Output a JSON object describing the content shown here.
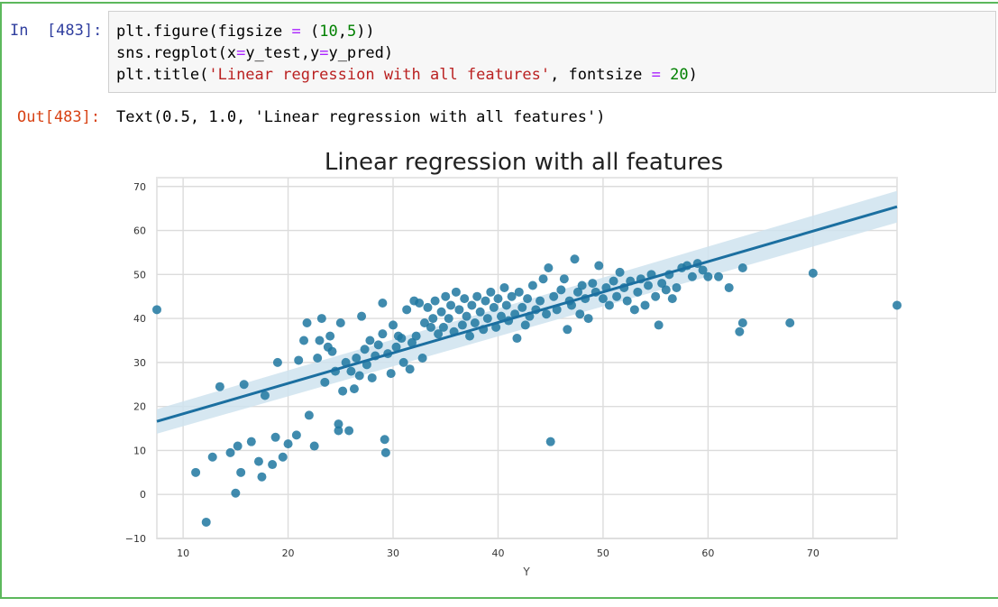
{
  "input_cell": {
    "prompt": "In  [483]:",
    "code_lines": [
      [
        {
          "t": "plt.figure(figsize "
        },
        {
          "t": "=",
          "c": "op"
        },
        {
          "t": " ("
        },
        {
          "t": "10",
          "c": "num"
        },
        {
          "t": ","
        },
        {
          "t": "5",
          "c": "num"
        },
        {
          "t": "))"
        }
      ],
      [
        {
          "t": "sns.regplot(x"
        },
        {
          "t": "=",
          "c": "op"
        },
        {
          "t": "y_test,y"
        },
        {
          "t": "=",
          "c": "op"
        },
        {
          "t": "y_pred)"
        }
      ],
      [
        {
          "t": "plt.title("
        },
        {
          "t": "'Linear regression with all features'",
          "c": "str"
        },
        {
          "t": ", fontsize "
        },
        {
          "t": "=",
          "c": "op"
        },
        {
          "t": " "
        },
        {
          "t": "20",
          "c": "num"
        },
        {
          "t": ")"
        }
      ]
    ]
  },
  "output_cell": {
    "prompt": "Out[483]:",
    "text": "Text(0.5, 1.0, 'Linear regression with all features')"
  },
  "colors": {
    "cell_border": "#5cb85c",
    "point": "#1f77a0",
    "line": "#1b6fa0",
    "ci_band": "#cfe3ee"
  },
  "chart_data": {
    "type": "scatter",
    "title": "Linear regression with all features",
    "xlabel": "Y",
    "ylabel": "",
    "xlim": [
      7.5,
      78
    ],
    "ylim": [
      -10,
      72
    ],
    "xticks": [
      10,
      20,
      30,
      40,
      50,
      60,
      70
    ],
    "yticks": [
      -10,
      0,
      10,
      20,
      30,
      40,
      50,
      60,
      70
    ],
    "grid": true,
    "regression": {
      "x": [
        7.5,
        78
      ],
      "y": [
        16.6,
        65.4
      ],
      "ci_lower": [
        13.8,
        61.8
      ],
      "ci_upper": [
        19.4,
        69.0
      ]
    },
    "points": [
      [
        7.5,
        42
      ],
      [
        11.2,
        5
      ],
      [
        12.2,
        -6.3
      ],
      [
        12.8,
        8.5
      ],
      [
        13.5,
        24.5
      ],
      [
        14.5,
        9.5
      ],
      [
        15,
        0.3
      ],
      [
        15.2,
        11
      ],
      [
        15.5,
        5
      ],
      [
        15.8,
        25
      ],
      [
        16.5,
        12
      ],
      [
        17.2,
        7.5
      ],
      [
        17.5,
        4
      ],
      [
        17.8,
        22.5
      ],
      [
        18.5,
        6.8
      ],
      [
        18.8,
        13
      ],
      [
        19,
        30
      ],
      [
        19.5,
        8.5
      ],
      [
        20,
        11.5
      ],
      [
        20.8,
        13.5
      ],
      [
        21,
        30.5
      ],
      [
        21.5,
        35
      ],
      [
        21.8,
        39
      ],
      [
        22,
        18
      ],
      [
        22.5,
        11
      ],
      [
        22.8,
        31
      ],
      [
        23,
        35
      ],
      [
        23.2,
        40
      ],
      [
        23.5,
        25.5
      ],
      [
        23.8,
        33.5
      ],
      [
        24,
        36
      ],
      [
        24.2,
        32.5
      ],
      [
        24.5,
        28
      ],
      [
        24.8,
        16
      ],
      [
        24.8,
        14.5
      ],
      [
        25,
        39
      ],
      [
        25.2,
        23.5
      ],
      [
        25.5,
        30
      ],
      [
        25.8,
        14.5
      ],
      [
        26,
        28
      ],
      [
        26.3,
        24
      ],
      [
        26.5,
        31
      ],
      [
        26.8,
        27
      ],
      [
        27,
        40.5
      ],
      [
        27.3,
        33
      ],
      [
        27.5,
        29.5
      ],
      [
        27.8,
        35
      ],
      [
        28,
        26.5
      ],
      [
        28.3,
        31.5
      ],
      [
        28.6,
        34
      ],
      [
        29,
        36.5
      ],
      [
        29,
        43.5
      ],
      [
        29.2,
        12.5
      ],
      [
        29.3,
        9.5
      ],
      [
        29.5,
        32
      ],
      [
        29.8,
        27.5
      ],
      [
        30,
        38.5
      ],
      [
        30.3,
        33.5
      ],
      [
        30.5,
        36
      ],
      [
        30.8,
        35.5
      ],
      [
        31,
        30
      ],
      [
        31.3,
        42
      ],
      [
        31.6,
        28.5
      ],
      [
        31.8,
        34.5
      ],
      [
        32,
        44
      ],
      [
        32.2,
        36
      ],
      [
        32.5,
        43.5
      ],
      [
        32.8,
        31
      ],
      [
        33,
        39
      ],
      [
        33.3,
        42.5
      ],
      [
        33.6,
        38
      ],
      [
        33.8,
        40
      ],
      [
        34,
        44
      ],
      [
        34.3,
        36.5
      ],
      [
        34.6,
        41.5
      ],
      [
        34.8,
        38
      ],
      [
        35,
        45
      ],
      [
        35.3,
        40
      ],
      [
        35.5,
        43
      ],
      [
        35.8,
        37
      ],
      [
        36,
        46
      ],
      [
        36.3,
        42
      ],
      [
        36.6,
        38.5
      ],
      [
        36.8,
        44.5
      ],
      [
        37,
        40.5
      ],
      [
        37.3,
        36
      ],
      [
        37.5,
        43
      ],
      [
        37.8,
        39
      ],
      [
        38,
        45
      ],
      [
        38.3,
        41.5
      ],
      [
        38.6,
        37.5
      ],
      [
        38.8,
        44
      ],
      [
        39,
        40
      ],
      [
        39.3,
        46
      ],
      [
        39.6,
        42.5
      ],
      [
        39.8,
        38
      ],
      [
        40,
        44.5
      ],
      [
        40.3,
        40.5
      ],
      [
        40.6,
        47
      ],
      [
        40.8,
        43
      ],
      [
        41,
        39.5
      ],
      [
        41.3,
        45
      ],
      [
        41.6,
        41
      ],
      [
        41.8,
        35.5
      ],
      [
        42,
        46
      ],
      [
        42.3,
        42.5
      ],
      [
        42.6,
        38.5
      ],
      [
        42.8,
        44.5
      ],
      [
        43,
        40.5
      ],
      [
        43.3,
        47.5
      ],
      [
        43.6,
        42
      ],
      [
        44,
        44
      ],
      [
        44.3,
        49
      ],
      [
        44.6,
        41
      ],
      [
        44.8,
        51.5
      ],
      [
        45,
        12
      ],
      [
        45.3,
        45
      ],
      [
        45.6,
        42
      ],
      [
        46,
        46.5
      ],
      [
        46.3,
        49
      ],
      [
        46.6,
        37.5
      ],
      [
        46.8,
        44
      ],
      [
        47,
        43
      ],
      [
        47.3,
        53.5
      ],
      [
        47.6,
        46
      ],
      [
        47.8,
        41
      ],
      [
        48,
        47.5
      ],
      [
        48.3,
        44.5
      ],
      [
        48.6,
        40
      ],
      [
        49,
        48
      ],
      [
        49.3,
        46
      ],
      [
        49.6,
        52
      ],
      [
        50,
        44.5
      ],
      [
        50.3,
        47
      ],
      [
        50.6,
        43
      ],
      [
        51,
        48.5
      ],
      [
        51.3,
        45
      ],
      [
        51.6,
        50.5
      ],
      [
        52,
        47
      ],
      [
        52.3,
        44
      ],
      [
        52.6,
        48.5
      ],
      [
        53,
        42
      ],
      [
        53.3,
        46
      ],
      [
        53.6,
        49
      ],
      [
        54,
        43
      ],
      [
        54.3,
        47.5
      ],
      [
        54.6,
        50
      ],
      [
        55,
        45
      ],
      [
        55.3,
        38.5
      ],
      [
        55.6,
        48
      ],
      [
        56,
        46.5
      ],
      [
        56.3,
        50
      ],
      [
        56.6,
        44.5
      ],
      [
        57,
        47
      ],
      [
        57.5,
        51.5
      ],
      [
        58,
        52
      ],
      [
        58.5,
        49.5
      ],
      [
        59,
        52.5
      ],
      [
        59.5,
        51
      ],
      [
        60,
        49.5
      ],
      [
        61,
        49.5
      ],
      [
        62,
        47
      ],
      [
        63,
        37
      ],
      [
        63.3,
        51.5
      ],
      [
        63.3,
        39
      ],
      [
        67.8,
        39
      ],
      [
        70,
        50.3
      ],
      [
        78,
        43
      ]
    ]
  }
}
